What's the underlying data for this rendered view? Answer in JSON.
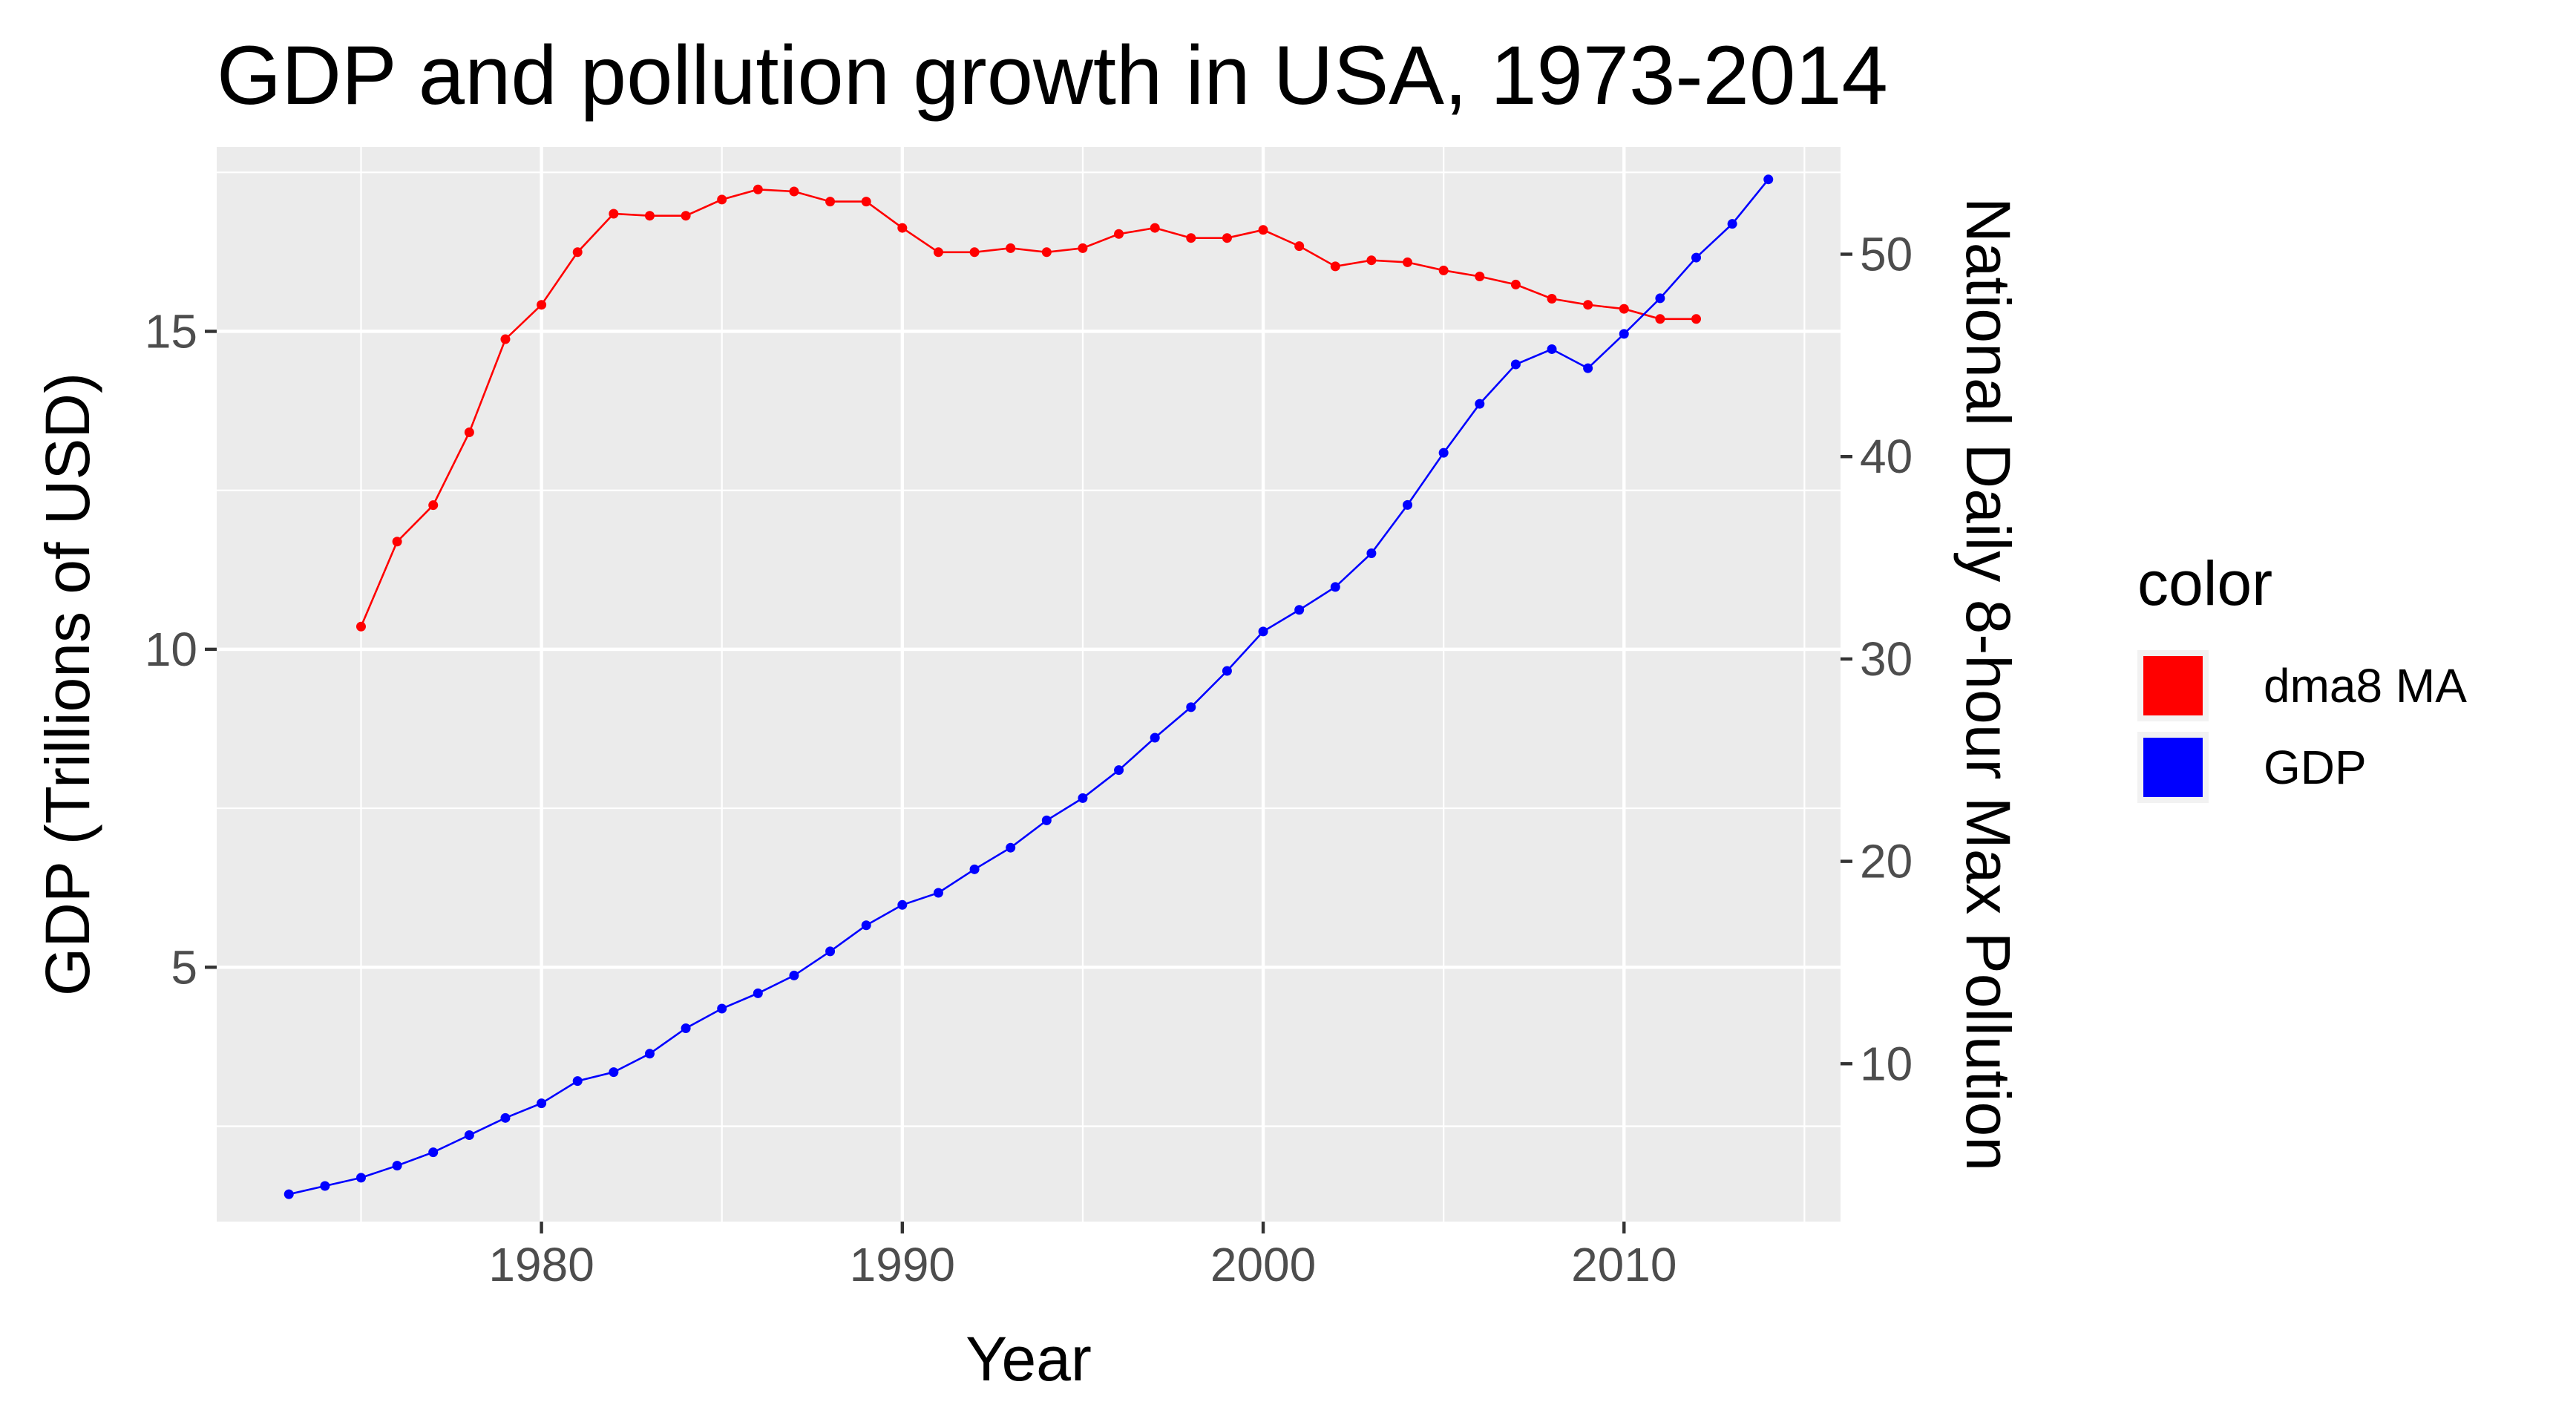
{
  "chart_data": {
    "type": "line",
    "title": "GDP and pollution growth in USA, 1973-2014",
    "xlabel": "Year",
    "ylabel": "GDP (Trillions of USD)",
    "y2label": "National Daily 8-hour Max Pollution",
    "xlim": [
      1971,
      2016
    ],
    "ylim": [
      1.0,
      17.9
    ],
    "y2lim": [
      2.2,
      55.3
    ],
    "x_ticks": [
      1980,
      1990,
      2000,
      2010
    ],
    "x_tick_labels": [
      "1980",
      "1990",
      "2000",
      "2010"
    ],
    "y_ticks": [
      5,
      10,
      15
    ],
    "y_tick_labels": [
      "5",
      "10",
      "15"
    ],
    "y2_ticks": [
      10,
      20,
      30,
      40,
      50
    ],
    "y2_tick_labels": [
      "10",
      "20",
      "30",
      "40",
      "50"
    ],
    "grid": true,
    "legend": {
      "title": "color",
      "position": "right"
    },
    "series": [
      {
        "name": "dma8 MA",
        "axis": "right",
        "color": "#ff0000",
        "x": [
          1975,
          1976,
          1977,
          1978,
          1979,
          1980,
          1981,
          1982,
          1983,
          1984,
          1985,
          1986,
          1987,
          1988,
          1989,
          1990,
          1991,
          1992,
          1993,
          1994,
          1995,
          1996,
          1997,
          1998,
          1999,
          2000,
          2001,
          2002,
          2003,
          2004,
          2005,
          2006,
          2007,
          2008,
          2009,
          2010,
          2011,
          2012
        ],
        "values": [
          31.6,
          35.8,
          37.6,
          41.2,
          45.8,
          47.5,
          50.1,
          52.0,
          51.9,
          51.9,
          52.7,
          53.2,
          53.1,
          52.6,
          52.6,
          51.3,
          50.1,
          50.1,
          50.3,
          50.1,
          50.3,
          51.0,
          51.3,
          50.8,
          50.8,
          51.2,
          50.4,
          49.4,
          49.7,
          49.6,
          49.2,
          48.9,
          48.5,
          47.8,
          47.5,
          47.3,
          46.8,
          46.8
        ]
      },
      {
        "name": "GDP",
        "axis": "left",
        "color": "#0000ff",
        "x": [
          1973,
          1974,
          1975,
          1976,
          1977,
          1978,
          1979,
          1980,
          1981,
          1982,
          1983,
          1984,
          1985,
          1986,
          1987,
          1988,
          1989,
          1990,
          1991,
          1992,
          1993,
          1994,
          1995,
          1996,
          1997,
          1998,
          1999,
          2000,
          2001,
          2002,
          2003,
          2004,
          2005,
          2006,
          2007,
          2008,
          2009,
          2010,
          2011,
          2012,
          2013,
          2014
        ],
        "values": [
          1.43,
          1.56,
          1.69,
          1.88,
          2.09,
          2.36,
          2.63,
          2.86,
          3.21,
          3.35,
          3.64,
          4.04,
          4.35,
          4.59,
          4.87,
          5.25,
          5.66,
          5.98,
          6.17,
          6.54,
          6.88,
          7.31,
          7.66,
          8.1,
          8.61,
          9.09,
          9.66,
          10.28,
          10.62,
          10.98,
          11.51,
          12.27,
          13.09,
          13.86,
          14.48,
          14.72,
          14.42,
          14.96,
          15.52,
          16.16,
          16.69,
          17.39
        ]
      }
    ]
  }
}
